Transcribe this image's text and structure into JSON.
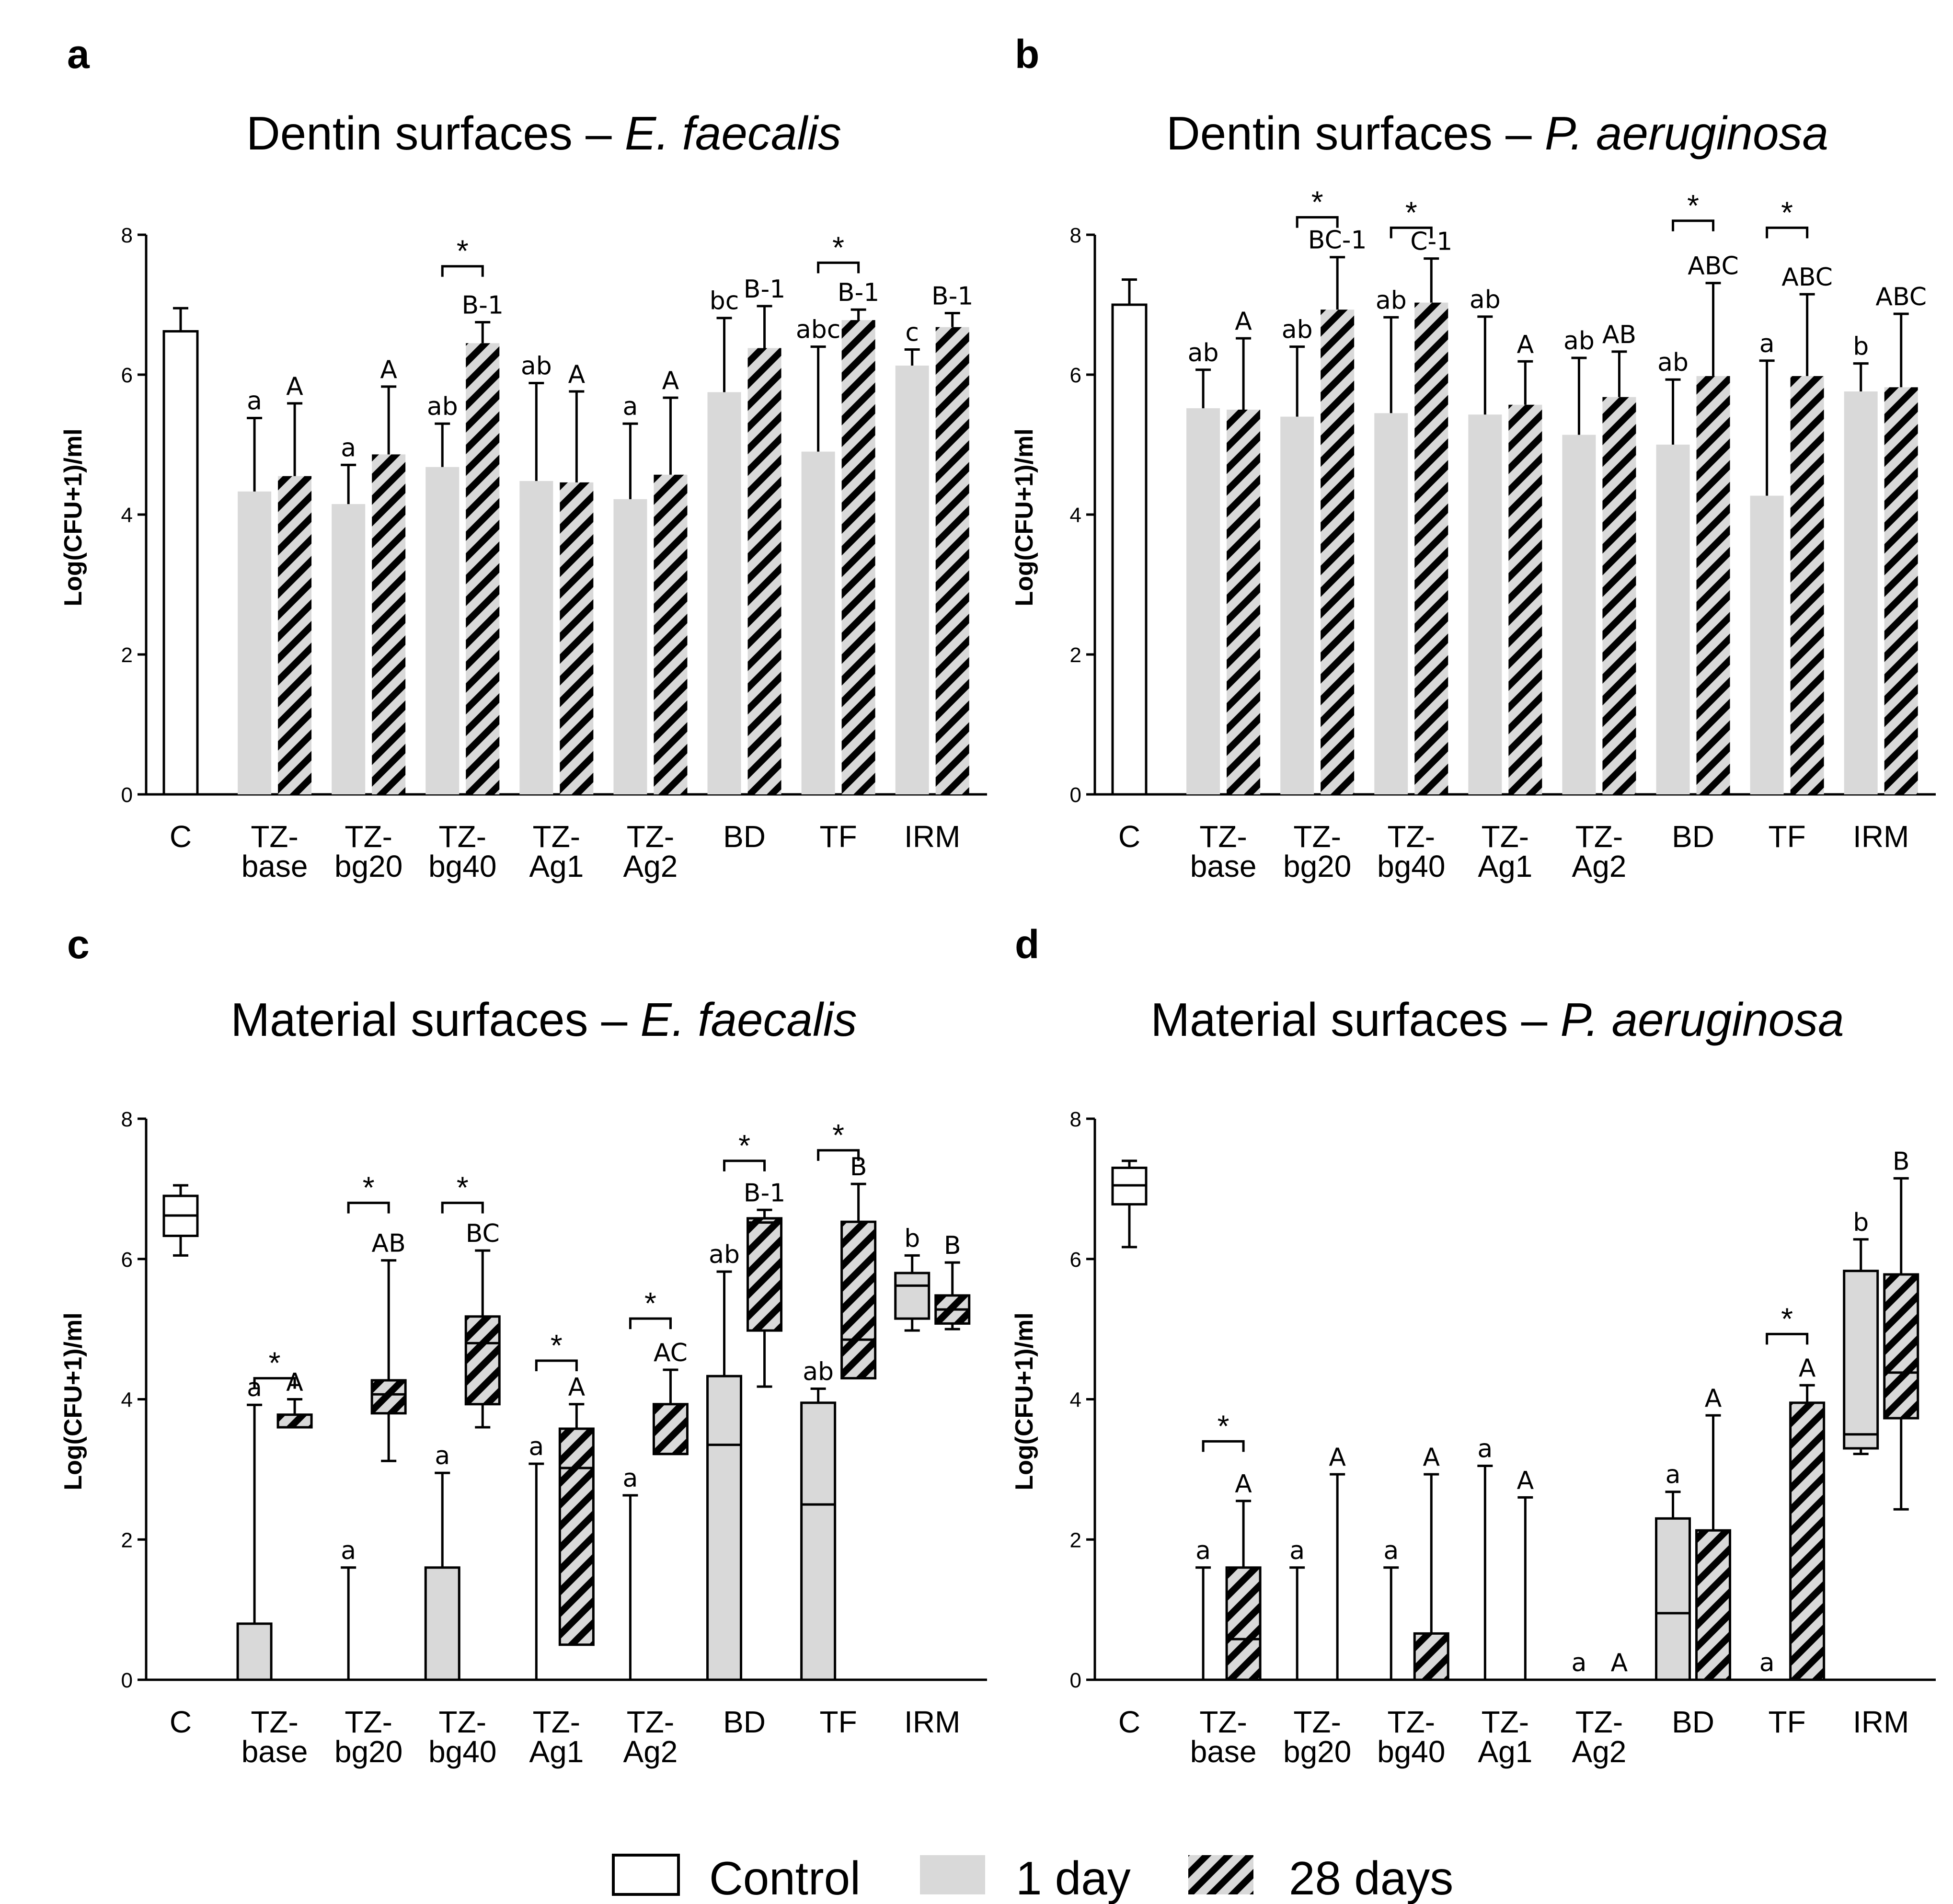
{
  "chart_data": [
    {
      "panel": "a",
      "type": "bar",
      "title_prefix": "Dentin surfaces – ",
      "title_italic": "E. faecalis",
      "ylabel": "Log(CFU+1)/ml",
      "ylim": [
        0,
        8
      ],
      "yticks": [
        "0",
        "2",
        "4",
        "6",
        "8"
      ],
      "categories": [
        "C",
        "TZ-\nbase",
        "TZ-\nbg20",
        "TZ-\nbg40",
        "TZ-\nAg1",
        "TZ-\nAg2",
        "BD",
        "TF",
        "IRM"
      ],
      "control": {
        "mean": 6.62,
        "err": 0.33
      },
      "series": [
        {
          "key": "day1",
          "values": [
            null,
            4.33,
            4.15,
            4.68,
            4.48,
            4.22,
            5.75,
            4.9,
            6.13
          ],
          "err": [
            null,
            1.05,
            0.56,
            0.62,
            1.4,
            1.08,
            1.06,
            1.5,
            0.23
          ],
          "labels": [
            null,
            "a",
            "a",
            "ab",
            "ab",
            "a",
            "bc",
            "abc",
            "c"
          ]
        },
        {
          "key": "day28",
          "values": [
            null,
            4.55,
            4.86,
            6.45,
            4.46,
            4.57,
            6.38,
            6.78,
            6.68
          ],
          "err": [
            null,
            1.04,
            0.97,
            0.3,
            1.3,
            1.1,
            0.6,
            0.15,
            0.2
          ],
          "labels": [
            null,
            "A",
            "A",
            "B-1",
            "A",
            "A",
            "B-1",
            "B-1",
            "B-1"
          ]
        }
      ],
      "significance": [
        {
          "group": 3,
          "y": 7.55
        },
        {
          "group": 7,
          "y": 7.6
        }
      ]
    },
    {
      "panel": "b",
      "type": "bar",
      "title_prefix": "Dentin surfaces – ",
      "title_italic": "P. aeruginosa",
      "ylabel": "Log(CFU+1)/ml",
      "ylim": [
        0,
        8
      ],
      "yticks": [
        "0",
        "2",
        "4",
        "6",
        "8"
      ],
      "categories": [
        "C",
        "TZ-\nbase",
        "TZ-\nbg20",
        "TZ-\nbg40",
        "TZ-\nAg1",
        "TZ-\nAg2",
        "BD",
        "TF",
        "IRM"
      ],
      "control": {
        "mean": 7.0,
        "err": 0.36
      },
      "series": [
        {
          "key": "day1",
          "values": [
            null,
            5.52,
            5.4,
            5.45,
            5.43,
            5.14,
            5.0,
            4.27,
            5.76
          ],
          "err": [
            null,
            0.55,
            1.0,
            1.37,
            1.4,
            1.1,
            0.93,
            1.93,
            0.4
          ],
          "labels": [
            null,
            "ab",
            "ab",
            "ab",
            "ab",
            "ab",
            "ab",
            "a",
            "b"
          ]
        },
        {
          "key": "day28",
          "values": [
            null,
            5.5,
            6.93,
            7.03,
            5.57,
            5.68,
            5.98,
            5.98,
            5.82
          ],
          "err": [
            null,
            1.02,
            0.75,
            0.63,
            0.62,
            0.65,
            1.33,
            1.17,
            1.05
          ],
          "labels": [
            null,
            "A",
            "BC-1",
            "C-1",
            "A",
            "AB",
            "ABC",
            "ABC",
            "ABC"
          ]
        }
      ],
      "significance": [
        {
          "group": 2,
          "y": 8.25
        },
        {
          "group": 3,
          "y": 8.1
        },
        {
          "group": 6,
          "y": 8.2
        },
        {
          "group": 7,
          "y": 8.1
        }
      ]
    },
    {
      "panel": "c",
      "type": "box",
      "title_prefix": "Material surfaces – ",
      "title_italic": "E. faecalis",
      "ylabel": "Log(CFU+1)/ml",
      "ylim": [
        0,
        8
      ],
      "yticks": [
        "0",
        "2",
        "4",
        "6",
        "8"
      ],
      "categories": [
        "C",
        "TZ-\nbase",
        "TZ-\nbg20",
        "TZ-\nbg40",
        "TZ-\nAg1",
        "TZ-\nAg2",
        "BD",
        "TF",
        "IRM"
      ],
      "control": {
        "min": 6.05,
        "q1": 6.33,
        "median": 6.62,
        "q3": 6.9,
        "max": 7.05
      },
      "series": [
        {
          "key": "day1",
          "boxes": [
            null,
            {
              "min": 0,
              "q1": 0,
              "median": 0,
              "q3": 0.8,
              "max": 3.92
            },
            {
              "min": 0,
              "q1": 0,
              "median": 0,
              "q3": 0,
              "max": 1.6
            },
            {
              "min": 0,
              "q1": 0,
              "median": 0,
              "q3": 1.6,
              "max": 2.95
            },
            {
              "min": 0,
              "q1": 0,
              "median": 0,
              "q3": 0,
              "max": 3.08
            },
            {
              "min": 0,
              "q1": 0,
              "median": 0,
              "q3": 0,
              "max": 2.63
            },
            {
              "min": 0,
              "q1": 0,
              "median": 3.35,
              "q3": 4.33,
              "max": 5.82
            },
            {
              "min": 0,
              "q1": 0,
              "median": 2.5,
              "q3": 3.95,
              "max": 4.15
            },
            {
              "min": 4.98,
              "q1": 5.15,
              "median": 5.62,
              "q3": 5.8,
              "max": 6.05
            }
          ],
          "labels": [
            null,
            "a",
            "a",
            "a",
            "a",
            "a",
            "ab",
            "ab",
            "b"
          ]
        },
        {
          "key": "day28",
          "boxes": [
            null,
            {
              "min": 3.6,
              "q1": 3.6,
              "median": 3.78,
              "q3": 3.78,
              "max": 4.0
            },
            {
              "min": 3.12,
              "q1": 3.8,
              "median": 4.07,
              "q3": 4.27,
              "max": 5.98
            },
            {
              "min": 3.6,
              "q1": 3.93,
              "median": 4.8,
              "q3": 5.18,
              "max": 6.12
            },
            {
              "min": 0.5,
              "q1": 0.5,
              "median": 3.02,
              "q3": 3.58,
              "max": 3.93
            },
            {
              "min": 3.22,
              "q1": 3.22,
              "median": 3.22,
              "q3": 3.93,
              "max": 4.42
            },
            {
              "min": 4.18,
              "q1": 4.98,
              "median": 6.52,
              "q3": 6.58,
              "max": 6.7
            },
            {
              "min": 4.3,
              "q1": 4.3,
              "median": 4.85,
              "q3": 6.53,
              "max": 7.07
            },
            {
              "min": 5.0,
              "q1": 5.08,
              "median": 5.28,
              "q3": 5.48,
              "max": 5.95
            }
          ],
          "labels": [
            null,
            "A",
            "AB",
            "BC",
            "A",
            "AC",
            "B-1",
            "B",
            "B"
          ]
        }
      ],
      "significance": [
        {
          "group": 1,
          "y": 4.3
        },
        {
          "group": 2,
          "y": 6.8
        },
        {
          "group": 3,
          "y": 6.8
        },
        {
          "group": 4,
          "y": 4.55
        },
        {
          "group": 5,
          "y": 5.15
        },
        {
          "group": 6,
          "y": 7.4
        },
        {
          "group": 7,
          "y": 7.55
        }
      ]
    },
    {
      "panel": "d",
      "type": "box",
      "title_prefix": "Material surfaces – ",
      "title_italic": "P. aeruginosa",
      "ylabel": "Log(CFU+1)/ml",
      "ylim": [
        0,
        8
      ],
      "yticks": [
        "0",
        "2",
        "4",
        "6",
        "8"
      ],
      "categories": [
        "C",
        "TZ-\nbase",
        "TZ-\nbg20",
        "TZ-\nbg40",
        "TZ-\nAg1",
        "TZ-\nAg2",
        "BD",
        "TF",
        "IRM"
      ],
      "control": {
        "min": 6.17,
        "q1": 6.78,
        "median": 7.05,
        "q3": 7.3,
        "max": 7.4
      },
      "series": [
        {
          "key": "day1",
          "boxes": [
            null,
            {
              "min": 0,
              "q1": 0,
              "median": 0,
              "q3": 0,
              "max": 1.6
            },
            {
              "min": 0,
              "q1": 0,
              "median": 0,
              "q3": 0,
              "max": 1.6
            },
            {
              "min": 0,
              "q1": 0,
              "median": 0,
              "q3": 0,
              "max": 1.6
            },
            {
              "min": 0,
              "q1": 0,
              "median": 0,
              "q3": 0,
              "max": 3.05
            },
            {
              "min": 0,
              "q1": 0,
              "median": 0,
              "q3": 0,
              "max": 0
            },
            {
              "min": 0,
              "q1": 0,
              "median": 0.95,
              "q3": 2.3,
              "max": 2.68
            },
            {
              "min": 0,
              "q1": 0,
              "median": 0,
              "q3": 0,
              "max": 0
            },
            {
              "min": 3.22,
              "q1": 3.3,
              "median": 3.5,
              "q3": 5.83,
              "max": 6.28
            }
          ],
          "labels": [
            null,
            "a",
            "a",
            "a",
            "a",
            "a",
            "a",
            "a",
            "b"
          ]
        },
        {
          "key": "day28",
          "boxes": [
            null,
            {
              "min": 0,
              "q1": 0,
              "median": 0.58,
              "q3": 1.6,
              "max": 2.55
            },
            {
              "min": 0,
              "q1": 0,
              "median": 0,
              "q3": 0,
              "max": 2.93
            },
            {
              "min": 0,
              "q1": 0,
              "median": 0,
              "q3": 0.66,
              "max": 2.93
            },
            {
              "min": 0,
              "q1": 0,
              "median": 0,
              "q3": 0,
              "max": 2.6
            },
            {
              "min": 0,
              "q1": 0,
              "median": 0,
              "q3": 0,
              "max": 0
            },
            {
              "min": 0,
              "q1": 0,
              "median": 0,
              "q3": 2.13,
              "max": 3.77
            },
            {
              "min": 0,
              "q1": 0,
              "median": 0,
              "q3": 3.95,
              "max": 4.2
            },
            {
              "min": 2.43,
              "q1": 3.73,
              "median": 4.38,
              "q3": 5.78,
              "max": 7.15
            }
          ],
          "labels": [
            null,
            "A",
            "A",
            "A",
            "A",
            "A",
            "A",
            "A",
            "B"
          ]
        }
      ],
      "significance": [
        {
          "group": 1,
          "y": 3.4
        },
        {
          "group": 7,
          "y": 4.93
        }
      ]
    }
  ],
  "legend": {
    "control": "Control",
    "day1": "1 day",
    "day28": "28 days"
  },
  "colors": {
    "day1_fill": "#d9d9d9",
    "day28_stripe": "#000000",
    "day28_bg": "#d9d9d9",
    "control_fill": "#ffffff",
    "line": "#000000"
  }
}
